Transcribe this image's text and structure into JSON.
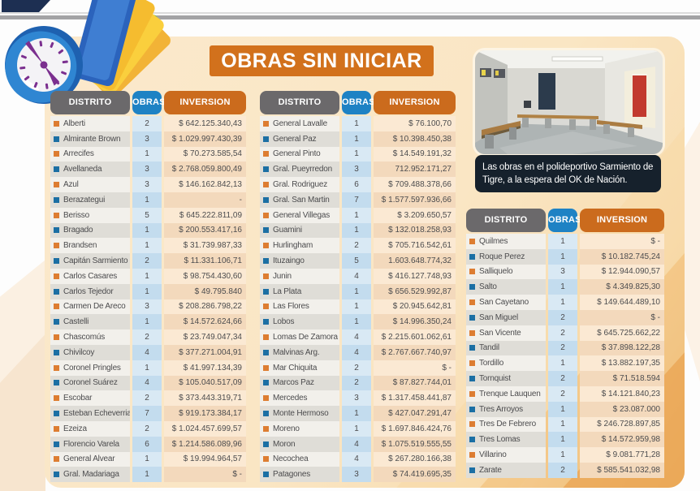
{
  "title": "OBRAS SIN INICIAR",
  "photo_caption": "Las obras en el polideportivo Sarmiento de Tigre, a la espera del OK de Nación.",
  "colors": {
    "title_bg": "#D2711C",
    "header_district_bg": "#6B696B",
    "header_obras_bg": "#1E82C4",
    "header_inversion_bg": "#CB6B1D",
    "bullet_orange": "#DD7D32",
    "bullet_blue": "#1B6FA4",
    "panel_bg": "#FAE6C4",
    "caption_bg": "#16212C"
  },
  "chart_data": [
    {
      "type": "table",
      "title": "OBRAS SIN INICIAR",
      "columns": [
        "DISTRITO",
        "OBRAS",
        "INVERSION"
      ],
      "rows": [
        [
          "Alberti",
          "2",
          "$ 642.125.340,43"
        ],
        [
          "Almirante Brown",
          "3",
          "$ 1.029.997.430,39"
        ],
        [
          "Arrecifes",
          "1",
          "$ 70.273.585,54"
        ],
        [
          "Avellaneda",
          "3",
          "$ 2.768.059.800,49"
        ],
        [
          "Azul",
          "3",
          "$ 146.162.842,13"
        ],
        [
          "Berazategui",
          "1",
          "-"
        ],
        [
          "Berisso",
          "5",
          "$ 645.222.811,09"
        ],
        [
          "Bragado",
          "1",
          "$ 200.553.417,16"
        ],
        [
          "Brandsen",
          "1",
          "$ 31.739.987,33"
        ],
        [
          "Capitán Sarmiento",
          "2",
          "$ 11.331.106,71"
        ],
        [
          "Carlos Casares",
          "1",
          "$ 98.754.430,60"
        ],
        [
          "Carlos Tejedor",
          "1",
          "$ 49.795.840"
        ],
        [
          "Carmen De Areco",
          "3",
          "$ 208.286.798,22"
        ],
        [
          "Castelli",
          "1",
          "$ 14.572.624,66"
        ],
        [
          "Chascomús",
          "2",
          "$ 23.749.047,34"
        ],
        [
          "Chivilcoy",
          "4",
          "$ 377.271.004,91"
        ],
        [
          "Coronel Pringles",
          "1",
          "$ 41.997.134,39"
        ],
        [
          "Coronel Suárez",
          "4",
          "$ 105.040.517,09"
        ],
        [
          "Escobar",
          "2",
          "$ 373.443.319,71"
        ],
        [
          "Esteban Echeverria",
          "7",
          "$ 919.173.384,17"
        ],
        [
          "Ezeiza",
          "2",
          "$ 1.024.457.699,57"
        ],
        [
          "Florencio Varela",
          "6",
          "$ 1.214.586.089,96"
        ],
        [
          "General Alvear",
          "1",
          "$ 19.994.964,57"
        ],
        [
          "Gral. Madariaga",
          "1",
          "$ -"
        ]
      ]
    },
    {
      "type": "table",
      "title": "OBRAS SIN INICIAR",
      "columns": [
        "DISTRITO",
        "OBRAS",
        "INVERSION"
      ],
      "rows": [
        [
          "General Lavalle",
          "1",
          "$ 76.100,70"
        ],
        [
          "General Paz",
          "1",
          "$ 10.398.450,38"
        ],
        [
          "General Pinto",
          "1",
          "$ 14.549.191,32"
        ],
        [
          "Gral. Pueyrredon",
          "3",
          "712.952.171,27"
        ],
        [
          "Gral. Rodriguez",
          "6",
          "$ 709.488.378,66"
        ],
        [
          "Gral. San Martin",
          "7",
          "$ 1.577.597.936,66"
        ],
        [
          "General Villegas",
          "1",
          "$ 3.209.650,57"
        ],
        [
          "Guamini",
          "1",
          "$ 132.018.258,93"
        ],
        [
          "Hurlingham",
          "2",
          "$ 705.716.542,61"
        ],
        [
          "Ituzaingo",
          "5",
          "1.603.648.774,32"
        ],
        [
          "Junin",
          "4",
          "$ 416.127.748,93"
        ],
        [
          "La Plata",
          "1",
          "$ 656.529.992,87"
        ],
        [
          "Las Flores",
          "1",
          "$ 20.945.642,81"
        ],
        [
          "Lobos",
          "1",
          "$ 14.996.350,24"
        ],
        [
          "Lomas De Zamora",
          "4",
          "$ 2.215.601.062,61"
        ],
        [
          "Malvinas Arg.",
          "4",
          "$ 2.767.667.740,97"
        ],
        [
          "Mar Chiquita",
          "2",
          "$ -"
        ],
        [
          "Marcos Paz",
          "2",
          "$ 87.827.744,01"
        ],
        [
          "Mercedes",
          "3",
          "$ 1.317.458.441,87"
        ],
        [
          "Monte Hermoso",
          "1",
          "$ 427.047.291,47"
        ],
        [
          "Moreno",
          "1",
          "$ 1.697.846.424,76"
        ],
        [
          "Moron",
          "4",
          "$ 1.075.519.555,55"
        ],
        [
          "Necochea",
          "4",
          "$ 267.280.166,38"
        ],
        [
          "Patagones",
          "3",
          "$ 74.419.695,35"
        ]
      ]
    },
    {
      "type": "table",
      "title": "OBRAS SIN INICIAR",
      "columns": [
        "DISTRITO",
        "OBRAS",
        "INVERSION"
      ],
      "rows": [
        [
          "Quilmes",
          "1",
          "$ -"
        ],
        [
          "Roque Perez",
          "1",
          "$ 10.182.745,24"
        ],
        [
          "Salliquelo",
          "3",
          "$ 12.944.090,57"
        ],
        [
          "Salto",
          "1",
          "$ 4.349.825,30"
        ],
        [
          "San Cayetano",
          "1",
          "$ 149.644.489,10"
        ],
        [
          "San Miguel",
          "2",
          "$ -"
        ],
        [
          "San Vicente",
          "2",
          "$ 645.725.662,22"
        ],
        [
          "Tandil",
          "2",
          "$ 37.898.122,28"
        ],
        [
          "Tordillo",
          "1",
          "$ 13.882.197,35"
        ],
        [
          "Tornquist",
          "2",
          "$ 71.518.594"
        ],
        [
          "Trenque Lauquen",
          "2",
          "$ 14.121.840,23"
        ],
        [
          "Tres Arroyos",
          "1",
          "$ 23.087.000"
        ],
        [
          "Tres De Febrero",
          "1",
          "$ 246.728.897,85"
        ],
        [
          "Tres Lomas",
          "1",
          "$ 14.572.959,98"
        ],
        [
          "Villarino",
          "1",
          "$ 9.081.771,28"
        ],
        [
          "Zarate",
          "2",
          "$ 585.541.032,98"
        ]
      ]
    }
  ]
}
